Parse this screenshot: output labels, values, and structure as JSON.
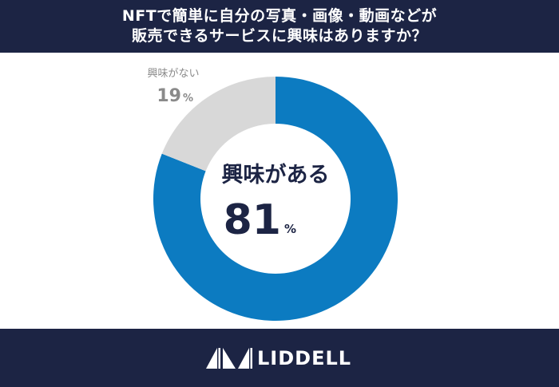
{
  "header": {
    "title_line1": "NFTで簡単に自分の写真・画像・動画などが",
    "title_line2": "販売できるサービスに興味はありますか？"
  },
  "footer": {
    "logo_text": "LIDDELL"
  },
  "colors": {
    "navy": "#1c2444",
    "blue": "#0c7bc1",
    "gray": "#d8d8d8",
    "gray_text": "#8a8a8a"
  },
  "chart_data": {
    "type": "pie",
    "title": "NFTで簡単に自分の写真・画像・動画などが販売できるサービスに興味はありますか？",
    "unit": "%",
    "slices": [
      {
        "label": "興味がある",
        "value": 81,
        "color": "#0c7bc1"
      },
      {
        "label": "興味がない",
        "value": 19,
        "color": "#d8d8d8"
      }
    ]
  }
}
